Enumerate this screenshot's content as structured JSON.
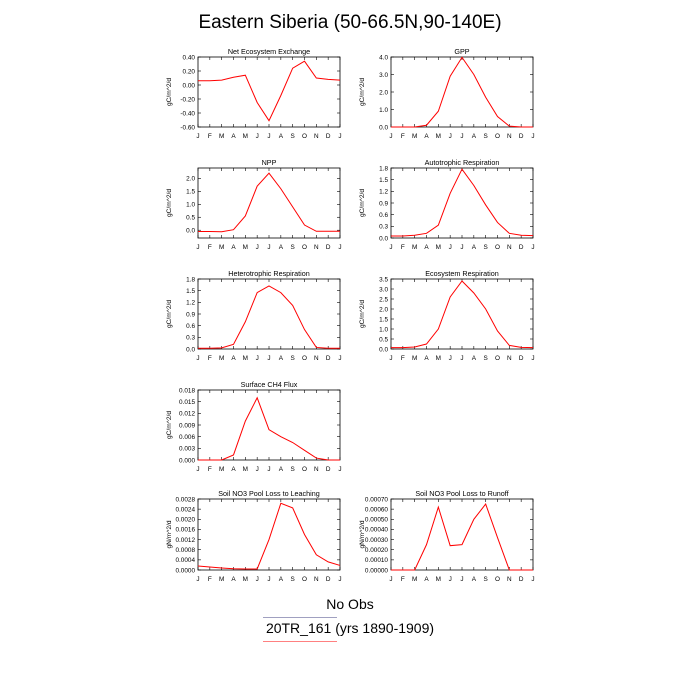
{
  "page": {
    "title": "Eastern Siberia (50-66.5N,90-140E)"
  },
  "legend": {
    "items": [
      {
        "label": "No Obs",
        "color": "#999999"
      },
      {
        "label": "20TR_161 (yrs 1890-1909)",
        "color": "#ff0000"
      }
    ]
  },
  "colors": {
    "series": "#ff0000",
    "axis": "#000000"
  },
  "chart_data": [
    {
      "type": "line",
      "title": "Net Ecosystem Exchange",
      "ylabel": "gC/m^2/d",
      "categories": [
        "J",
        "F",
        "M",
        "A",
        "M",
        "J",
        "J",
        "A",
        "S",
        "O",
        "N",
        "D",
        "J"
      ],
      "ylim": [
        -0.6,
        0.4
      ],
      "yticks": [
        "0.40",
        "0.20",
        "0.00",
        "-0.20",
        "-0.40",
        "-0.60"
      ],
      "series": [
        {
          "values": [
            0.06,
            0.06,
            0.07,
            0.11,
            0.14,
            -0.25,
            -0.51,
            -0.15,
            0.24,
            0.34,
            0.1,
            0.08,
            0.07
          ]
        }
      ]
    },
    {
      "type": "line",
      "title": "GPP",
      "ylabel": "gC/m^2/d",
      "categories": [
        "J",
        "F",
        "M",
        "A",
        "M",
        "J",
        "J",
        "A",
        "S",
        "O",
        "N",
        "D",
        "J"
      ],
      "ylim": [
        0,
        4
      ],
      "yticks": [
        "4.0",
        "3.0",
        "2.0",
        "1.0",
        "0.0"
      ],
      "series": [
        {
          "values": [
            0,
            0,
            0,
            0.1,
            0.9,
            2.9,
            3.98,
            3.0,
            1.7,
            0.6,
            0.05,
            0,
            0
          ]
        }
      ]
    },
    {
      "type": "line",
      "title": "NPP",
      "ylabel": "gC/m^2/d",
      "categories": [
        "J",
        "F",
        "M",
        "A",
        "M",
        "J",
        "J",
        "A",
        "S",
        "O",
        "N",
        "D",
        "J"
      ],
      "ylim": [
        -0.3,
        2.4
      ],
      "yticks": [
        "2.0",
        "1.5",
        "1.0",
        "0.5",
        "0.0"
      ],
      "series": [
        {
          "values": [
            -0.05,
            -0.05,
            -0.06,
            0.02,
            0.55,
            1.7,
            2.2,
            1.6,
            0.9,
            0.2,
            -0.04,
            -0.04,
            -0.04
          ]
        }
      ]
    },
    {
      "type": "line",
      "title": "Autotrophic Respiration",
      "ylabel": "gC/m^2/d",
      "categories": [
        "J",
        "F",
        "M",
        "A",
        "M",
        "J",
        "J",
        "A",
        "S",
        "O",
        "N",
        "D",
        "J"
      ],
      "ylim": [
        0,
        1.8
      ],
      "yticks": [
        "1.8",
        "1.5",
        "1.2",
        "0.9",
        "0.6",
        "0.3",
        "0.0"
      ],
      "series": [
        {
          "values": [
            0.05,
            0.05,
            0.07,
            0.12,
            0.33,
            1.15,
            1.77,
            1.35,
            0.85,
            0.4,
            0.12,
            0.07,
            0.06
          ]
        }
      ]
    },
    {
      "type": "line",
      "title": "Heterotrophic Respiration",
      "ylabel": "gC/m^2/d",
      "categories": [
        "J",
        "F",
        "M",
        "A",
        "M",
        "J",
        "J",
        "A",
        "S",
        "O",
        "N",
        "D",
        "J"
      ],
      "ylim": [
        0,
        1.8
      ],
      "yticks": [
        "1.8",
        "1.5",
        "1.2",
        "0.9",
        "0.6",
        "0.3",
        "0.0"
      ],
      "series": [
        {
          "values": [
            0.02,
            0.02,
            0.03,
            0.12,
            0.7,
            1.45,
            1.62,
            1.45,
            1.12,
            0.5,
            0.04,
            0.02,
            0.02
          ]
        }
      ]
    },
    {
      "type": "line",
      "title": "Ecosystem Respiration",
      "ylabel": "gC/m^2/d",
      "categories": [
        "J",
        "F",
        "M",
        "A",
        "M",
        "J",
        "J",
        "A",
        "S",
        "O",
        "N",
        "D",
        "J"
      ],
      "ylim": [
        0,
        3.5
      ],
      "yticks": [
        "3.5",
        "3.0",
        "2.5",
        "2.0",
        "1.5",
        "1.0",
        "0.5",
        "0.0"
      ],
      "series": [
        {
          "values": [
            0.07,
            0.07,
            0.1,
            0.25,
            1.0,
            2.6,
            3.4,
            2.8,
            2.0,
            0.9,
            0.18,
            0.08,
            0.07
          ]
        }
      ]
    },
    {
      "type": "line",
      "title": "Surface CH4 Flux",
      "ylabel": "gC/m^2/d",
      "categories": [
        "J",
        "F",
        "M",
        "A",
        "M",
        "J",
        "J",
        "A",
        "S",
        "O",
        "N",
        "D",
        "J"
      ],
      "ylim": [
        0,
        0.018
      ],
      "yticks": [
        "0.018",
        "0.015",
        "0.012",
        "0.009",
        "0.006",
        "0.003",
        "0.000"
      ],
      "series": [
        {
          "values": [
            0,
            0,
            0,
            0.0013,
            0.01,
            0.016,
            0.0078,
            0.006,
            0.0045,
            0.0025,
            0.0005,
            0,
            0
          ]
        }
      ]
    },
    {
      "type": "line",
      "title": "Soil NO3 Pool Loss to Leaching",
      "ylabel": "gN/m^2/d",
      "categories": [
        "J",
        "F",
        "M",
        "A",
        "M",
        "J",
        "J",
        "A",
        "S",
        "O",
        "N",
        "D",
        "J"
      ],
      "ylim": [
        0,
        0.0028
      ],
      "yticks": [
        "0.0028",
        "0.0024",
        "0.0020",
        "0.0016",
        "0.0012",
        "0.0008",
        "0.0004",
        "0.0000"
      ],
      "series": [
        {
          "values": [
            0.00016,
            0.00012,
            8e-05,
            5e-05,
            4e-05,
            4e-05,
            0.0012,
            0.00263,
            0.00245,
            0.0014,
            0.0006,
            0.00032,
            0.00018
          ]
        }
      ]
    },
    {
      "type": "line",
      "title": "Soil NO3 Pool Loss to Runoff",
      "ylabel": "gN/m^2/d",
      "categories": [
        "J",
        "F",
        "M",
        "A",
        "M",
        "J",
        "J",
        "A",
        "S",
        "O",
        "N",
        "D",
        "J"
      ],
      "ylim": [
        0,
        0.0007
      ],
      "yticks": [
        "0.00070",
        "0.00060",
        "0.00050",
        "0.00040",
        "0.00030",
        "0.00020",
        "0.00010",
        "0.00000"
      ],
      "series": [
        {
          "values": [
            0,
            0,
            0,
            0.00025,
            0.00062,
            0.00024,
            0.00025,
            0.0005,
            0.00065,
            0.00032,
            0,
            0,
            0
          ]
        }
      ]
    }
  ]
}
